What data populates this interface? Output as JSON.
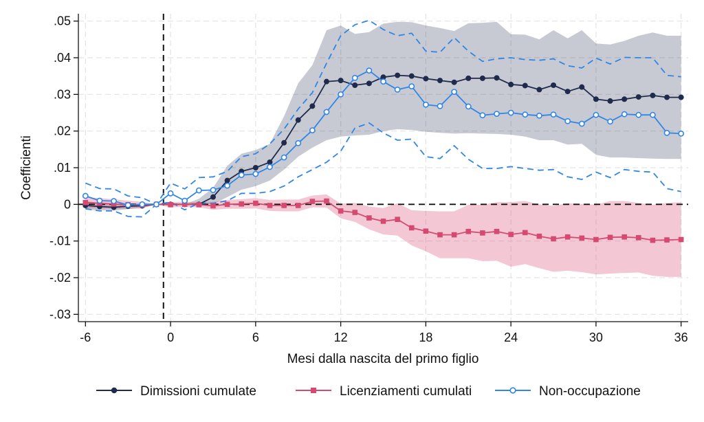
{
  "chart_data": {
    "type": "line",
    "xlabel": "Mesi dalla nascita del primo figlio",
    "ylabel": "Coefficienti",
    "xlim": [
      -6.5,
      36.5
    ],
    "ylim": [
      -0.032,
      0.052
    ],
    "x_ticks": [
      -6,
      0,
      6,
      12,
      18,
      24,
      30,
      36
    ],
    "x_tick_labels": [
      "-6",
      "0",
      "6",
      "12",
      "18",
      "24",
      "30",
      "36"
    ],
    "y_ticks": [
      0.05,
      0.04,
      0.03,
      0.02,
      0.01,
      0,
      -0.01,
      -0.02,
      -0.03
    ],
    "y_tick_labels": [
      ".05",
      ".04",
      ".03",
      ".02",
      ".01",
      "0",
      "-.01",
      "-.02",
      "-.03"
    ],
    "grid": true,
    "reference_lines": {
      "x": -0.5,
      "y": 0
    },
    "legend_position": "bottom",
    "x": [
      -6,
      -5,
      -4,
      -3,
      -2,
      -1,
      0,
      1,
      2,
      3,
      4,
      5,
      6,
      7,
      8,
      9,
      10,
      11,
      12,
      13,
      14,
      15,
      16,
      17,
      18,
      19,
      20,
      21,
      22,
      23,
      24,
      25,
      26,
      27,
      28,
      29,
      30,
      31,
      32,
      33,
      34,
      35,
      36
    ],
    "series": [
      {
        "name": "Dimissioni cumulate",
        "color": "#1f2a4d",
        "marker": "circle-filled",
        "values": [
          -0.0003,
          -0.0006,
          -0.0008,
          -0.0005,
          -0.0004,
          0,
          0,
          0,
          0,
          0.002,
          0.0065,
          0.009,
          0.01,
          0.0115,
          0.0168,
          0.023,
          0.0268,
          0.0335,
          0.0338,
          0.0325,
          0.033,
          0.0347,
          0.0352,
          0.035,
          0.0343,
          0.0338,
          0.0333,
          0.0344,
          0.0344,
          0.0345,
          0.0327,
          0.0324,
          0.0313,
          0.0325,
          0.0308,
          0.032,
          0.0287,
          0.0282,
          0.0287,
          0.0293,
          0.0297,
          0.0292,
          0.0292
        ],
        "ci_lower": [
          -0.0015,
          -0.0016,
          -0.0017,
          -0.0013,
          -0.0009,
          0,
          0,
          0,
          0,
          0,
          0.002,
          0.004,
          0.005,
          0.0065,
          0.0095,
          0.013,
          0.0155,
          0.0175,
          0.0185,
          0.0188,
          0.019,
          0.02,
          0.0205,
          0.0203,
          0.0198,
          0.0195,
          0.0193,
          0.0194,
          0.0193,
          0.0192,
          0.019,
          0.0185,
          0.0175,
          0.0175,
          0.0163,
          0.0165,
          0.0135,
          0.0128,
          0.0128,
          0.0126,
          0.0125,
          0.0124,
          0.0124
        ],
        "ci_upper": [
          0.0009,
          0.0004,
          0.0001,
          0.0003,
          0.0001,
          0,
          0,
          0,
          0.0015,
          0.0045,
          0.0105,
          0.0138,
          0.0148,
          0.0165,
          0.024,
          0.033,
          0.038,
          0.0475,
          0.0488,
          0.0465,
          0.047,
          0.0493,
          0.0498,
          0.0497,
          0.0488,
          0.0481,
          0.0473,
          0.0494,
          0.0495,
          0.0498,
          0.0464,
          0.0463,
          0.045,
          0.0475,
          0.0453,
          0.0475,
          0.0439,
          0.0436,
          0.0446,
          0.046,
          0.0469,
          0.046,
          0.046
        ]
      },
      {
        "name": "Licenziamenti cumulati",
        "color": "#d64a72",
        "marker": "square-filled",
        "values": [
          0.0005,
          0.0003,
          0.0001,
          -0.0001,
          -0.0002,
          0,
          -0.0001,
          0,
          -0.0001,
          -0.0004,
          0,
          0.0001,
          0.0003,
          -0.0003,
          -0.0003,
          -0.0003,
          0.0008,
          0.0009,
          -0.0018,
          -0.0022,
          -0.0037,
          -0.0046,
          -0.0041,
          -0.0064,
          -0.0073,
          -0.0083,
          -0.0083,
          -0.0074,
          -0.0078,
          -0.0074,
          -0.0082,
          -0.0077,
          -0.0087,
          -0.0094,
          -0.0089,
          -0.0092,
          -0.0096,
          -0.009,
          -0.0089,
          -0.0091,
          -0.0098,
          -0.0097,
          -0.0096
        ],
        "ci_lower": [
          -0.001,
          -0.0011,
          -0.0012,
          -0.0012,
          -0.0011,
          0,
          -0.0008,
          -0.0007,
          -0.0008,
          -0.0015,
          -0.0012,
          -0.0012,
          -0.0011,
          -0.0018,
          -0.0019,
          -0.0019,
          -0.0008,
          -0.0009,
          -0.0038,
          -0.0048,
          -0.0068,
          -0.0082,
          -0.0085,
          -0.0112,
          -0.0128,
          -0.0147,
          -0.0147,
          -0.0147,
          -0.0155,
          -0.0154,
          -0.017,
          -0.0163,
          -0.0174,
          -0.0184,
          -0.0181,
          -0.0185,
          -0.0191,
          -0.0189,
          -0.0187,
          -0.0186,
          -0.0195,
          -0.0198,
          -0.0198
        ],
        "ci_upper": [
          0.002,
          0.0017,
          0.0014,
          0.001,
          0.0007,
          0,
          0.0006,
          0.0007,
          0.0006,
          0.0007,
          0.0012,
          0.0014,
          0.0017,
          0.0012,
          0.0013,
          0.0013,
          0.0024,
          0.0027,
          0.0002,
          0.0004,
          -0.0006,
          -0.001,
          0.0003,
          -0.0016,
          -0.0018,
          -0.0019,
          -0.0019,
          -0.0001,
          -0.0001,
          0.0006,
          0.0006,
          0.0009,
          0,
          -0.0004,
          0.0003,
          0.0001,
          -0.0001,
          0.0009,
          0.0009,
          0.0004,
          -0.0001,
          0.0004,
          0.0006
        ]
      },
      {
        "name": "Non-occupazione",
        "color": "#2f86e6",
        "marker": "circle-hollow",
        "values": [
          0.0023,
          0.001,
          0.0009,
          -0.0002,
          0,
          0,
          0.003,
          0.001,
          0.0038,
          0.0039,
          0.0051,
          0.008,
          0.0083,
          0.0102,
          0.0128,
          0.0167,
          0.0202,
          0.0252,
          0.03,
          0.0345,
          0.0365,
          0.0335,
          0.0313,
          0.0322,
          0.0272,
          0.0268,
          0.0307,
          0.0267,
          0.0243,
          0.0247,
          0.025,
          0.0245,
          0.0242,
          0.0245,
          0.0227,
          0.022,
          0.0244,
          0.0226,
          0.0246,
          0.0244,
          0.0244,
          0.0195,
          0.0193
        ],
        "ci_lower": [
          -0.0012,
          -0.0018,
          -0.0018,
          -0.0033,
          -0.0034,
          0,
          0.0006,
          -0.0015,
          0.0003,
          0.0003,
          0.001,
          0.003,
          0.003,
          0.0035,
          0.005,
          0.0075,
          0.0095,
          0.0115,
          0.0145,
          0.0208,
          0.0222,
          0.0195,
          0.0175,
          0.0178,
          0.013,
          0.0125,
          0.016,
          0.0123,
          0.0098,
          0.0098,
          0.0103,
          0.0098,
          0.0093,
          0.0095,
          0.0075,
          0.0068,
          0.0088,
          0.0073,
          0.0095,
          0.009,
          0.0088,
          0.0043,
          0.0035
        ],
        "ci_upper": [
          0.0058,
          0.0043,
          0.0042,
          0.0023,
          0.0018,
          0,
          0.0058,
          0.0042,
          0.0073,
          0.0075,
          0.009,
          0.013,
          0.0138,
          0.0165,
          0.0205,
          0.026,
          0.0305,
          0.0385,
          0.046,
          0.049,
          0.0502,
          0.0477,
          0.046,
          0.0467,
          0.0418,
          0.0415,
          0.0455,
          0.0418,
          0.039,
          0.0397,
          0.04,
          0.0395,
          0.0393,
          0.0397,
          0.0378,
          0.0372,
          0.0399,
          0.0383,
          0.0401,
          0.04,
          0.04,
          0.0352,
          0.0348
        ]
      }
    ]
  }
}
